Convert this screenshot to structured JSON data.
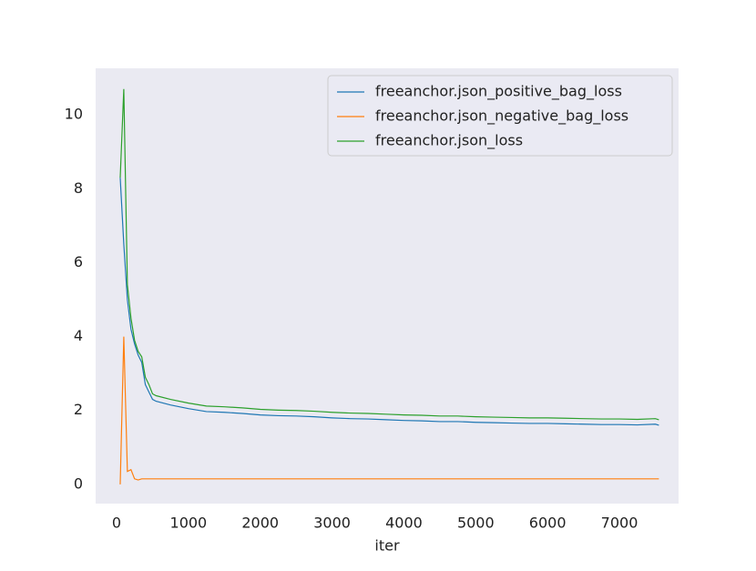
{
  "chart_data": {
    "type": "line",
    "xlabel": "iter",
    "x": [
      50,
      100,
      150,
      200,
      250,
      300,
      350,
      400,
      450,
      500,
      550,
      750,
      1000,
      1250,
      1500,
      1750,
      2000,
      2250,
      2500,
      2750,
      3000,
      3250,
      3500,
      3750,
      4000,
      4250,
      4500,
      4750,
      5000,
      5250,
      5500,
      5750,
      6000,
      6250,
      6500,
      6750,
      7000,
      7250,
      7500,
      7550
    ],
    "series": [
      {
        "name": "freeanchor.json_positive_bag_loss",
        "color": "#1f77b4",
        "values": [
          8.3,
          6.5,
          5.0,
          4.2,
          3.8,
          3.5,
          3.3,
          2.7,
          2.5,
          2.3,
          2.25,
          2.15,
          2.05,
          1.97,
          1.95,
          1.92,
          1.88,
          1.86,
          1.85,
          1.83,
          1.8,
          1.78,
          1.77,
          1.75,
          1.73,
          1.72,
          1.7,
          1.7,
          1.68,
          1.67,
          1.66,
          1.65,
          1.65,
          1.64,
          1.63,
          1.62,
          1.62,
          1.61,
          1.63,
          1.6
        ]
      },
      {
        "name": "freeanchor.json_negative_bag_loss",
        "color": "#ff7f0e",
        "values": [
          0.0,
          4.0,
          0.35,
          0.4,
          0.15,
          0.12,
          0.15,
          0.15,
          0.15,
          0.15,
          0.15,
          0.15,
          0.15,
          0.15,
          0.15,
          0.15,
          0.15,
          0.15,
          0.15,
          0.15,
          0.15,
          0.15,
          0.15,
          0.15,
          0.15,
          0.15,
          0.15,
          0.15,
          0.15,
          0.15,
          0.15,
          0.15,
          0.15,
          0.15,
          0.15,
          0.15,
          0.15,
          0.15,
          0.15,
          0.15
        ]
      },
      {
        "name": "freeanchor.json_loss",
        "color": "#2ca02c",
        "values": [
          8.3,
          10.7,
          5.4,
          4.5,
          3.9,
          3.6,
          3.45,
          2.9,
          2.7,
          2.45,
          2.4,
          2.3,
          2.2,
          2.12,
          2.1,
          2.07,
          2.03,
          2.01,
          2.0,
          1.98,
          1.95,
          1.93,
          1.92,
          1.9,
          1.88,
          1.87,
          1.85,
          1.85,
          1.83,
          1.82,
          1.81,
          1.8,
          1.8,
          1.79,
          1.78,
          1.77,
          1.77,
          1.76,
          1.78,
          1.75
        ]
      }
    ],
    "xlim": [
      -292,
      7824
    ],
    "ylim": [
      -0.52,
      11.26
    ],
    "xticks": [
      0,
      1000,
      2000,
      3000,
      4000,
      5000,
      6000,
      7000
    ],
    "yticks": [
      0,
      2,
      4,
      6,
      8,
      10
    ],
    "legend": "upper right"
  }
}
